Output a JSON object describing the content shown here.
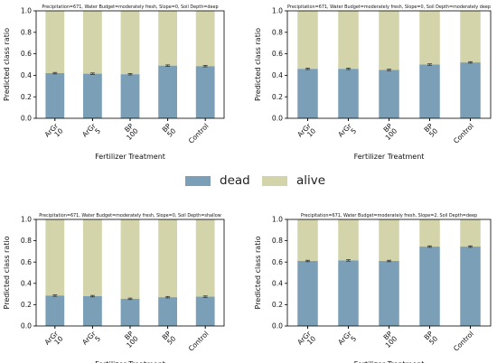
{
  "colors": {
    "dead": "#7a9fb6",
    "alive": "#d3d4aa",
    "error": "#333333"
  },
  "legend": [
    {
      "key": "dead",
      "label": "dead"
    },
    {
      "key": "alive",
      "label": "alive"
    }
  ],
  "chart_data": [
    {
      "type": "bar",
      "stacked": true,
      "title": "Precipitation=671, Water Budget=moderately fresh, Slope=0, Soil Depth=deep",
      "xlabel": "Fertilizer Treatment",
      "ylabel": "Predicted class ratio",
      "ylim": [
        0,
        1.0
      ],
      "yticks": [
        "0.0",
        "0.2",
        "0.4",
        "0.6",
        "0.8",
        "1.0"
      ],
      "categories": [
        "ArGr 10",
        "ArGr 5",
        "BP 100",
        "BP 50",
        "Control"
      ],
      "series": [
        {
          "name": "dead",
          "values": [
            0.42,
            0.415,
            0.41,
            0.49,
            0.485
          ]
        },
        {
          "name": "alive",
          "values": [
            0.58,
            0.585,
            0.59,
            0.51,
            0.515
          ]
        }
      ]
    },
    {
      "type": "bar",
      "stacked": true,
      "title": "Precipitation=671, Water Budget=moderately fresh, Slope=0, Soil Depth=moderately deep",
      "xlabel": "Fertilizer Treatment",
      "ylabel": "Predicted class ratio",
      "ylim": [
        0,
        1.0
      ],
      "yticks": [
        "0.0",
        "0.2",
        "0.4",
        "0.6",
        "0.8",
        "1.0"
      ],
      "categories": [
        "ArGr 10",
        "ArGr 5",
        "BP 100",
        "BP 50",
        "Control"
      ],
      "series": [
        {
          "name": "dead",
          "values": [
            0.46,
            0.46,
            0.45,
            0.5,
            0.52
          ]
        },
        {
          "name": "alive",
          "values": [
            0.54,
            0.54,
            0.55,
            0.5,
            0.48
          ]
        }
      ]
    },
    {
      "type": "bar",
      "stacked": true,
      "title": "Precipitation=671, Water Budget=moderately fresh, Slope=0, Soil Depth=shallow",
      "xlabel": "Fertilizer Treatment",
      "ylabel": "Predicted class ratio",
      "ylim": [
        0,
        1.0
      ],
      "yticks": [
        "0.0",
        "0.2",
        "0.4",
        "0.6",
        "0.8",
        "1.0"
      ],
      "categories": [
        "ArGr 10",
        "ArGr 5",
        "BP 100",
        "BP 50",
        "Control"
      ],
      "series": [
        {
          "name": "dead",
          "values": [
            0.285,
            0.28,
            0.255,
            0.27,
            0.275
          ]
        },
        {
          "name": "alive",
          "values": [
            0.715,
            0.72,
            0.745,
            0.73,
            0.725
          ]
        }
      ]
    },
    {
      "type": "bar",
      "stacked": true,
      "title": "Precipitation=671, Water Budget=moderately fresh, Slope=2, Soil Depth=deep",
      "xlabel": "Fertilizer Treatment",
      "ylabel": "Predicted class ratio",
      "ylim": [
        0,
        1.0
      ],
      "yticks": [
        "0.0",
        "0.2",
        "0.4",
        "0.6",
        "0.8",
        "1.0"
      ],
      "categories": [
        "ArGr 10",
        "ArGr 5",
        "BP 100",
        "BP 50",
        "Control"
      ],
      "series": [
        {
          "name": "dead",
          "values": [
            0.61,
            0.615,
            0.61,
            0.745,
            0.745
          ]
        },
        {
          "name": "alive",
          "values": [
            0.39,
            0.385,
            0.39,
            0.255,
            0.255
          ]
        }
      ]
    }
  ]
}
